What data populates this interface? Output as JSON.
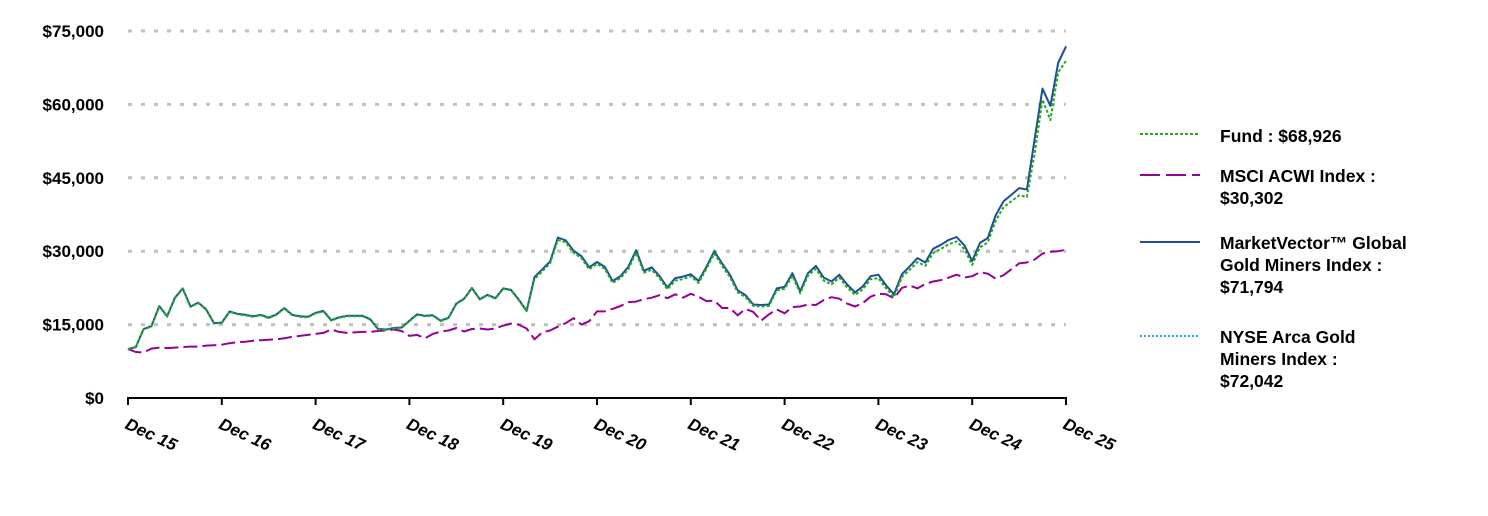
{
  "chart_data": {
    "type": "line",
    "title": "",
    "xlabel": "",
    "ylabel": "",
    "ylim": [
      0,
      75000
    ],
    "yticks": [
      0,
      15000,
      30000,
      45000,
      60000,
      75000
    ],
    "ytick_labels": [
      "$0",
      "$15,000",
      "$30,000",
      "$45,000",
      "$60,000",
      "$75,000"
    ],
    "xtick_labels": [
      "Dec 15",
      "Dec 16",
      "Dec 17",
      "Dec 18",
      "Dec 19",
      "Dec 20",
      "Dec 21",
      "Dec 22",
      "Dec 23",
      "Dec 24",
      "Dec 25"
    ],
    "grid": "horizontal dotted",
    "legend_position": "right",
    "x_points_per_year": 12,
    "series": [
      {
        "name": "Fund",
        "legend_label": "Fund : $68,926",
        "final_value": 68926,
        "color": "#1fad1f",
        "style": "dotted",
        "values": [
          10000,
          10400,
          14000,
          14600,
          18700,
          16600,
          20400,
          22300,
          18600,
          19400,
          18000,
          15200,
          15300,
          17600,
          17100,
          16900,
          16600,
          16900,
          16300,
          17000,
          18300,
          16900,
          16600,
          16500,
          17300,
          17700,
          15800,
          16400,
          16700,
          16700,
          16700,
          16000,
          14000,
          13900,
          14200,
          14300,
          15700,
          17000,
          16700,
          16800,
          15700,
          16300,
          19200,
          20200,
          22400,
          20100,
          21000,
          20300,
          22300,
          22000,
          20000,
          17700,
          24300,
          25900,
          27500,
          32300,
          31800,
          29700,
          28600,
          26300,
          27400,
          26400,
          23500,
          24500,
          26300,
          29700,
          25600,
          26200,
          24500,
          22200,
          24000,
          24300,
          24900,
          23500,
          26400,
          29500,
          27000,
          24700,
          21600,
          20600,
          18800,
          18700,
          18800,
          22000,
          22300,
          25000,
          21400,
          25000,
          26400,
          24000,
          23200,
          24600,
          22600,
          21100,
          22200,
          24300,
          24500,
          22400,
          20600,
          24700,
          26200,
          27800,
          27000,
          29600,
          30500,
          31400,
          32000,
          30400,
          27200,
          30800,
          31800,
          36200,
          39000,
          40200,
          41400,
          41100,
          50000,
          61000,
          56800,
          66500,
          68926
        ]
      },
      {
        "name": "MSCI ACWI Index",
        "legend_label": "MSCI ACWI Index :\n$30,302",
        "final_value": 30302,
        "color": "#990099",
        "style": "dashed",
        "values": [
          10000,
          9400,
          9300,
          10100,
          10300,
          10200,
          10300,
          10400,
          10500,
          10500,
          10700,
          10800,
          10900,
          11200,
          11400,
          11500,
          11700,
          11800,
          11900,
          12000,
          12200,
          12500,
          12700,
          12900,
          13100,
          13300,
          14000,
          13500,
          13300,
          13400,
          13500,
          13500,
          13700,
          13800,
          14000,
          13700,
          12700,
          12900,
          12200,
          13100,
          13600,
          13800,
          14300,
          13600,
          14100,
          14200,
          14000,
          14200,
          14800,
          15200,
          15000,
          14200,
          12000,
          13400,
          13800,
          14600,
          15300,
          16300,
          15000,
          15700,
          17700,
          17700,
          18200,
          18800,
          19600,
          19700,
          20200,
          20500,
          21000,
          20400,
          21200,
          20500,
          21300,
          20700,
          19800,
          19900,
          18400,
          18400,
          16900,
          18200,
          17600,
          15800,
          17100,
          18100,
          17300,
          18600,
          18700,
          19100,
          19000,
          20000,
          20600,
          20300,
          19300,
          18700,
          19400,
          20700,
          21300,
          21200,
          20400,
          22500,
          23000,
          22400,
          23300,
          23800,
          24100,
          24600,
          25200,
          24600,
          24900,
          25700,
          25400,
          24400,
          25100,
          26300,
          27500,
          27700,
          28300,
          29500,
          29900,
          30000,
          30302
        ]
      },
      {
        "name": "MarketVector™ Global Gold Miners Index",
        "legend_label": "MarketVector™ Global\nGold Miners Index :\n $71,794",
        "final_value": 71794,
        "color": "#1f4e96",
        "style": "solid",
        "values": [
          10000,
          10400,
          14100,
          14700,
          18800,
          16700,
          20500,
          22400,
          18700,
          19500,
          18100,
          15300,
          15400,
          17700,
          17200,
          17000,
          16700,
          17000,
          16400,
          17100,
          18400,
          17000,
          16700,
          16600,
          17400,
          17800,
          15900,
          16500,
          16800,
          16800,
          16800,
          16100,
          14100,
          14000,
          14300,
          14400,
          15800,
          17100,
          16800,
          16900,
          15800,
          16400,
          19300,
          20300,
          22500,
          20200,
          21100,
          20400,
          22400,
          22100,
          20100,
          17800,
          24700,
          26300,
          27900,
          32800,
          32200,
          30100,
          29000,
          26700,
          27800,
          26800,
          23900,
          24900,
          26800,
          30200,
          26000,
          26700,
          24900,
          22600,
          24500,
          24800,
          25300,
          23900,
          26800,
          30000,
          27500,
          25200,
          22000,
          21000,
          19100,
          19000,
          19100,
          22400,
          22700,
          25500,
          21800,
          25500,
          27000,
          24600,
          23800,
          25200,
          23200,
          21600,
          22800,
          24900,
          25200,
          23000,
          21200,
          25300,
          26900,
          28600,
          27700,
          30500,
          31300,
          32300,
          32900,
          31200,
          28000,
          31700,
          32700,
          37300,
          40200,
          41500,
          42900,
          42600,
          53000,
          63200,
          59700,
          68500,
          71794
        ]
      },
      {
        "name": "NYSE Arca Gold Miners Index",
        "legend_label": "NYSE Arca Gold\nMiners Index :\n$72,042",
        "final_value": 72042,
        "color": "#1fb3cc",
        "style": "fine-dotted",
        "values": [
          10000,
          10400,
          14100,
          14700,
          18800,
          16700,
          20500,
          22400,
          18700,
          19500,
          18100,
          15300,
          15400,
          17700,
          17200,
          17000,
          16700,
          17000,
          16400,
          17100,
          18400,
          17000,
          16700,
          16600,
          17400,
          17800,
          15900,
          16500,
          16800,
          16800,
          16800,
          16100,
          14100,
          14000,
          14300,
          14400,
          15800,
          17100,
          16800,
          16900,
          15800,
          16400,
          19300,
          20300,
          22500,
          20200,
          21100,
          20400,
          22400,
          22100,
          20100,
          17800,
          24700,
          26300,
          27900,
          32800,
          32200,
          30100,
          29000,
          26700,
          27800,
          26800,
          23900,
          24900,
          26800,
          30200,
          26000,
          26700,
          24900,
          22600,
          24500,
          24800,
          25300,
          23900,
          26800,
          30000,
          27500,
          25200,
          22000,
          21000,
          19100,
          19000,
          19100,
          22400,
          22700,
          25500,
          21800,
          25500,
          27000,
          24600,
          23800,
          25200,
          23200,
          21600,
          22800,
          24900,
          25200,
          23000,
          21200,
          25300,
          26900,
          28600,
          27700,
          30500,
          31300,
          32300,
          32900,
          31200,
          28000,
          31700,
          32700,
          37300,
          40200,
          41500,
          42900,
          42600,
          53000,
          63300,
          59800,
          68700,
          72042
        ]
      }
    ]
  },
  "legend": {
    "items": [
      {
        "label": "Fund : $68,926"
      },
      {
        "label": "MSCI ACWI Index :\n$30,302"
      },
      {
        "label": "MarketVector™ Global\nGold Miners Index :\n $71,794"
      },
      {
        "label": "NYSE Arca Gold\nMiners Index :\n$72,042"
      }
    ]
  },
  "colors": {
    "fund": "#1fad1f",
    "msci": "#990099",
    "marketvector": "#1f4e96",
    "nyse": "#1fb3cc",
    "grid": "#c0c0c0",
    "axis": "#000000"
  }
}
